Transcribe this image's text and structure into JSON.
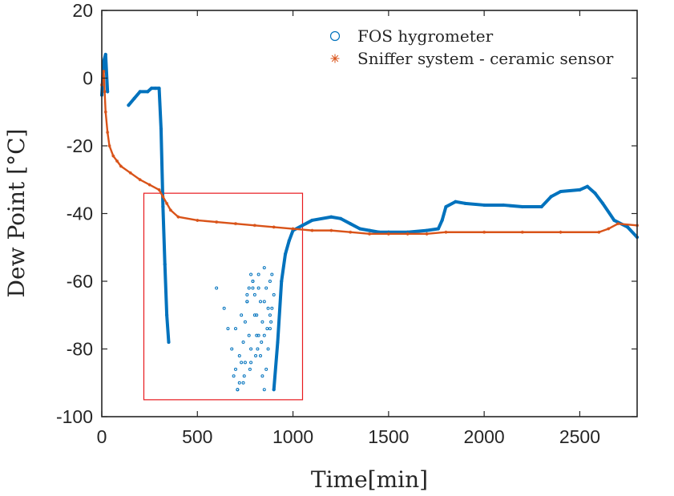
{
  "chart_data": {
    "type": "scatter",
    "title": "",
    "xlabel": "Time[min]",
    "ylabel": "Dew Point [°C]",
    "xlim": [
      0,
      2800
    ],
    "ylim": [
      -100,
      20
    ],
    "xticks": [
      "0",
      "500",
      "1000",
      "1500",
      "2000",
      "2500"
    ],
    "yticks": [
      "20",
      "0",
      "-20",
      "-40",
      "-60",
      "-80",
      "-100"
    ],
    "legend_position": "top-right",
    "grid": false,
    "zoom_box": {
      "x": [
        220,
        1050
      ],
      "y": [
        -95,
        -34
      ],
      "color": "#e8191d"
    },
    "series": [
      {
        "name": "FOS hygrometer",
        "marker": "circle",
        "color": "#0072bd",
        "segments": [
          {
            "x": [
              0,
              10,
              20,
              30
            ],
            "y": [
              -5,
              5,
              7,
              -4
            ]
          },
          {
            "x": [
              140,
              170,
              200,
              240,
              260,
              280,
              300,
              310,
              320,
              330,
              340,
              350
            ],
            "y": [
              -8,
              -6,
              -4,
              -4,
              -3,
              -3,
              -3,
              -15,
              -38,
              -55,
              -70,
              -78
            ]
          },
          {
            "x": [
              900,
              920,
              940,
              960,
              980,
              1000,
              1050,
              1100,
              1200,
              1250,
              1300,
              1350,
              1400,
              1450,
              1500,
              1600,
              1700,
              1760,
              1780,
              1800,
              1850,
              1900,
              2000,
              2100,
              2200,
              2300,
              2350,
              2400,
              2500,
              2540,
              2580,
              2620,
              2680,
              2750,
              2800
            ],
            "y": [
              -92,
              -78,
              -60,
              -52,
              -48,
              -45,
              -43.5,
              -42,
              -41,
              -41.5,
              -43,
              -44.5,
              -45,
              -45.5,
              -45.5,
              -45.5,
              -45,
              -44.5,
              -42,
              -38,
              -36.5,
              -37,
              -37.5,
              -37.5,
              -38,
              -38,
              -35,
              -33.5,
              -33,
              -32,
              -34,
              -37,
              -42,
              -44,
              -47
            ]
          }
        ],
        "scatter": {
          "x": [
            600,
            640,
            660,
            680,
            700,
            710,
            720,
            730,
            740,
            750,
            760,
            770,
            780,
            790,
            800,
            810,
            820,
            830,
            840,
            850,
            860,
            870,
            880,
            890,
            900,
            700,
            730,
            760,
            790,
            820,
            850,
            880,
            750,
            780,
            810,
            840,
            870,
            690,
            720,
            770,
            800,
            830,
            860,
            890,
            740,
            775,
            805,
            835,
            865,
            760,
            790,
            820,
            850,
            880,
            710,
            745,
            780,
            815,
            850,
            885
          ],
          "y": [
            -62,
            -68,
            -74,
            -80,
            -86,
            -92,
            -90,
            -84,
            -78,
            -72,
            -66,
            -62,
            -58,
            -60,
            -64,
            -70,
            -76,
            -82,
            -88,
            -92,
            -86,
            -80,
            -74,
            -68,
            -64,
            -74,
            -70,
            -66,
            -62,
            -58,
            -56,
            -60,
            -84,
            -80,
            -76,
            -72,
            -68,
            -88,
            -82,
            -76,
            -70,
            -66,
            -62,
            -58,
            -90,
            -86,
            -82,
            -78,
            -74,
            -64,
            -60,
            -62,
            -66,
            -70,
            -92,
            -88,
            -84,
            -80,
            -76,
            -72
          ]
        }
      },
      {
        "name": "Sniffer system - ceramic sensor",
        "marker": "asterisk",
        "color": "#d95319",
        "x": [
          0,
          10,
          15,
          20,
          30,
          40,
          60,
          80,
          100,
          150,
          200,
          250,
          300,
          320,
          340,
          360,
          400,
          500,
          600,
          700,
          800,
          900,
          1000,
          1100,
          1200,
          1300,
          1400,
          1500,
          1600,
          1700,
          1800,
          2000,
          2200,
          2400,
          2600,
          2650,
          2700,
          2800
        ],
        "y": [
          -2,
          2,
          -4,
          -10,
          -16,
          -20,
          -23,
          -24.5,
          -26,
          -28,
          -30,
          -31.5,
          -33,
          -35,
          -37,
          -39,
          -41,
          -42,
          -42.5,
          -43,
          -43.5,
          -44,
          -44.5,
          -45,
          -45,
          -45.5,
          -46,
          -46,
          -46,
          -46,
          -45.5,
          -45.5,
          -45.5,
          -45.5,
          -45.5,
          -44.5,
          -43,
          -43.5
        ]
      }
    ]
  }
}
